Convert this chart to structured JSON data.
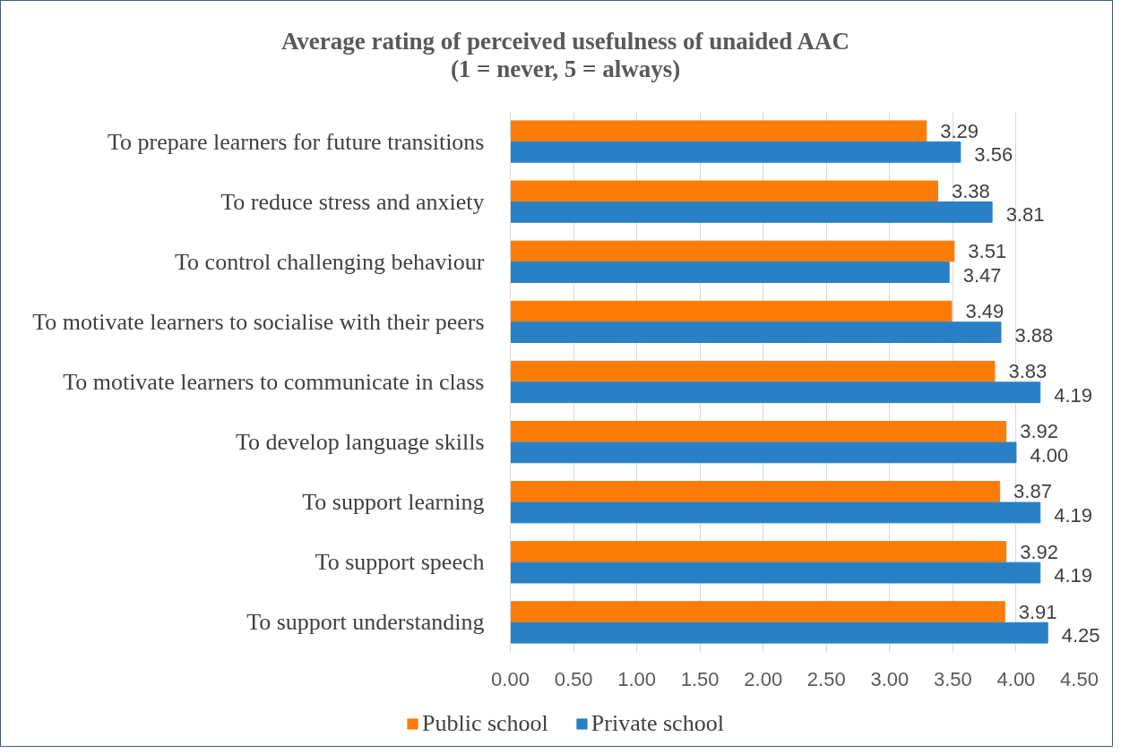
{
  "chart_data": {
    "type": "bar",
    "orientation": "horizontal",
    "title": "Average rating of perceived usefulness of unaided AAC",
    "subtitle": "(1 = never, 5 = always)",
    "categories": [
      "To prepare learners for future transitions",
      "To reduce stress and anxiety",
      "To control challenging behaviour",
      "To motivate learners to socialise with their peers",
      "To motivate learners to communicate in class",
      "To develop language skills",
      "To support learning",
      "To support speech",
      "To support understanding"
    ],
    "series": [
      {
        "name": "Public school",
        "color": "#fb7d07",
        "values": [
          3.29,
          3.38,
          3.51,
          3.49,
          3.83,
          3.92,
          3.87,
          3.92,
          3.91
        ],
        "value_labels": [
          "3.29",
          "3.38",
          "3.51",
          "3.49",
          "3.83",
          "3.92",
          "3.87",
          "3.92",
          "3.91"
        ]
      },
      {
        "name": "Private school",
        "color": "#2980c5",
        "values": [
          3.56,
          3.81,
          3.47,
          3.88,
          4.19,
          4.0,
          4.19,
          4.19,
          4.25
        ],
        "value_labels": [
          "3.56",
          "3.81",
          "3.47",
          "3.88",
          "4.19",
          "4.00",
          "4.19",
          "4.19",
          "4.25"
        ]
      }
    ],
    "xlim": [
      0,
      4.5
    ],
    "xticks": [
      {
        "value": 0,
        "label": "0.00"
      },
      {
        "value": 0.5,
        "label": "0.50"
      },
      {
        "value": 1,
        "label": "1.00"
      },
      {
        "value": 1.5,
        "label": "1.50"
      },
      {
        "value": 2,
        "label": "2.00"
      },
      {
        "value": 2.5,
        "label": "2.50"
      },
      {
        "value": 3,
        "label": "3.00"
      },
      {
        "value": 3.5,
        "label": "3.50"
      },
      {
        "value": 4,
        "label": "4.00"
      },
      {
        "value": 4.5,
        "label": "4.50"
      }
    ],
    "grid": "x",
    "legend": "bottom"
  }
}
